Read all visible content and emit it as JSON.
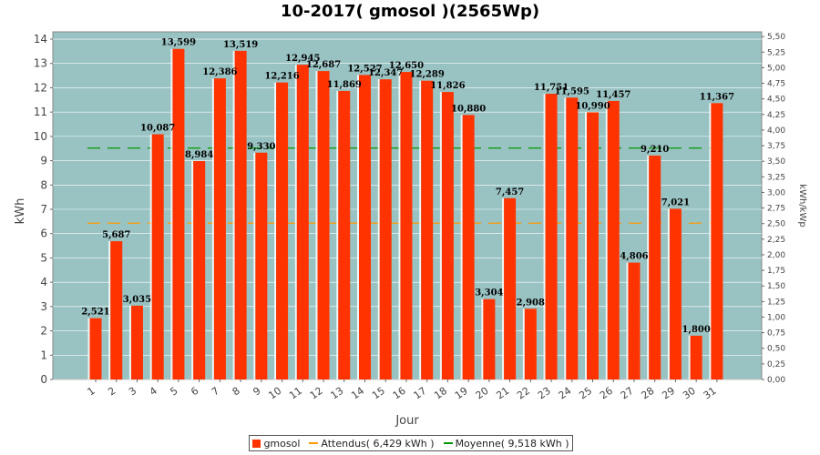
{
  "chart_data": {
    "type": "bar",
    "title": "10-2017( gmosol )(2565Wp)",
    "xlabel": "Jour",
    "ylabel": "kWh",
    "ylabel_right": "kWh/kWp",
    "ylim": [
      0,
      14.3
    ],
    "yticks": [
      "0",
      "1",
      "2",
      "3",
      "4",
      "5",
      "6",
      "7",
      "8",
      "9",
      "10",
      "11",
      "12",
      "13",
      "14"
    ],
    "yticks_right": [
      "0,00",
      "0,25",
      "0,50",
      "0,75",
      "1,00",
      "1,25",
      "1,50",
      "1,75",
      "2,00",
      "2,25",
      "2,50",
      "2,75",
      "3,00",
      "3,25",
      "3,50",
      "3,75",
      "4,00",
      "4,25",
      "4,50",
      "4,75",
      "5,00",
      "5,25",
      "5,50"
    ],
    "categories": [
      "1",
      "2",
      "3",
      "4",
      "5",
      "6",
      "7",
      "8",
      "9",
      "10",
      "11",
      "12",
      "13",
      "14",
      "15",
      "16",
      "17",
      "18",
      "19",
      "20",
      "21",
      "22",
      "23",
      "24",
      "25",
      "26",
      "27",
      "28",
      "29",
      "30",
      "31"
    ],
    "series": [
      {
        "name": "gmosol",
        "color": "#ff3300",
        "values": [
          2.521,
          5.687,
          3.035,
          10.087,
          13.599,
          8.984,
          12.386,
          13.519,
          9.33,
          12.216,
          12.945,
          12.687,
          11.869,
          12.527,
          12.347,
          12.65,
          12.289,
          11.826,
          10.88,
          3.304,
          7.457,
          2.908,
          11.751,
          11.595,
          10.99,
          11.457,
          4.806,
          9.21,
          7.021,
          1.8,
          11.367
        ],
        "labels": [
          "2,521",
          "5,687",
          "3,035",
          "10,087",
          "13,599",
          "8,984",
          "12,386",
          "13,519",
          "9,330",
          "12,216",
          "12,945",
          "12,687",
          "11,869",
          "12,527",
          "12,347",
          "12,650",
          "12,289",
          "11,826",
          "10,880",
          "3,304",
          "7,457",
          "2,908",
          "11,751",
          "11,595",
          "10,990",
          "11,457",
          "4,806",
          "9,210",
          "7,021",
          "1,800",
          "11,367"
        ]
      }
    ],
    "reference_lines": [
      {
        "name": "Attendus( 6,429 kWh )",
        "value": 6.429,
        "color": "#ff9900",
        "style": "dashed"
      },
      {
        "name": "Moyenne( 9,518 kWh )",
        "value": 9.518,
        "color": "#009900",
        "style": "dashed"
      }
    ],
    "plot_background": "#99c2c2",
    "grid": true,
    "legend_position": "bottom"
  }
}
